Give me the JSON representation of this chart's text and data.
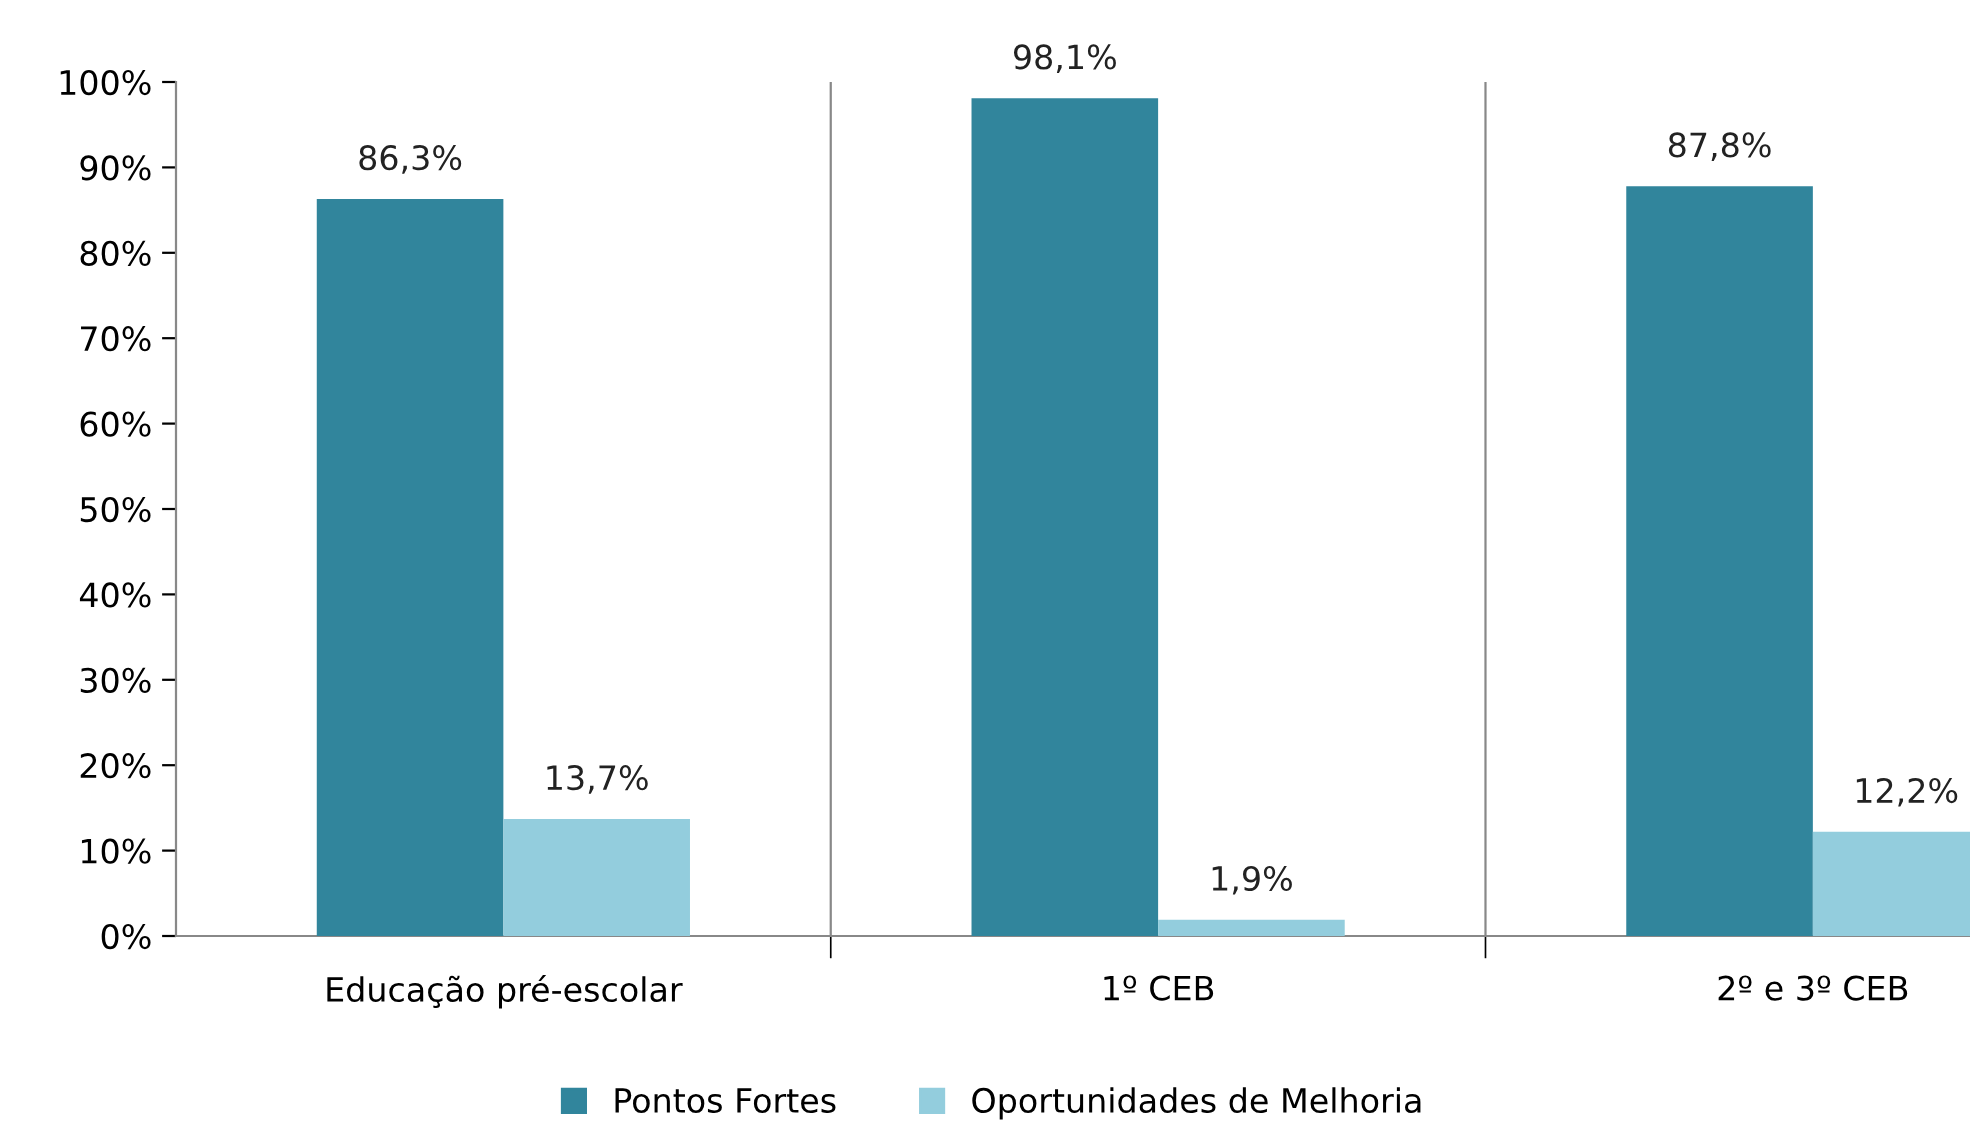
{
  "chart_data": {
    "type": "bar",
    "categories": [
      "Educação pré-escolar",
      "1º CEB",
      "2º e 3º CEB"
    ],
    "series": [
      {
        "name": "Pontos Fortes",
        "color": "#31859c",
        "values": [
          86.3,
          98.1,
          87.8
        ],
        "value_labels": [
          "86,3%",
          "98,1%",
          "87,8%"
        ]
      },
      {
        "name": "Oportunidades de Melhoria",
        "color": "#93cddd",
        "values": [
          13.7,
          1.9,
          12.2
        ],
        "value_labels": [
          "13,7%",
          "1,9%",
          "12,2%"
        ]
      }
    ],
    "ylim": [
      0,
      100
    ],
    "yticks": [
      {
        "value": 0,
        "label": "0%"
      },
      {
        "value": 10,
        "label": "10%"
      },
      {
        "value": 20,
        "label": "20%"
      },
      {
        "value": 30,
        "label": "30%"
      },
      {
        "value": 40,
        "label": "40%"
      },
      {
        "value": 50,
        "label": "50%"
      },
      {
        "value": 60,
        "label": "60%"
      },
      {
        "value": 70,
        "label": "70%"
      },
      {
        "value": 80,
        "label": "80%"
      },
      {
        "value": 90,
        "label": "90%"
      },
      {
        "value": 100,
        "label": "100%"
      }
    ],
    "grid": "x",
    "legend": "bottom"
  }
}
